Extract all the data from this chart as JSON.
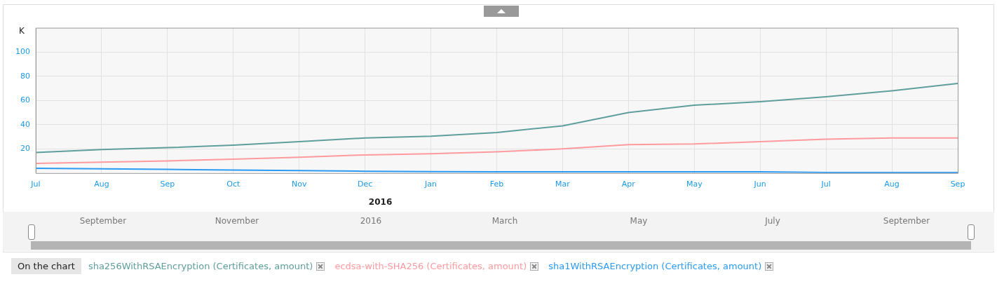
{
  "chart_data": {
    "type": "line",
    "ylabel": "K",
    "legend_title": "On the chart",
    "categories": [
      "Jul",
      "Aug",
      "Sep",
      "Oct",
      "Nov",
      "Dec",
      "Jan",
      "Feb",
      "Mar",
      "Apr",
      "May",
      "Jun",
      "Jul",
      "Aug",
      "Sep"
    ],
    "series": [
      {
        "name": "sha256WithRSAEncryption (Certificates, amount)",
        "color": "#5f9e9c",
        "values": [
          17,
          19.5,
          21,
          23,
          26,
          29,
          30.5,
          33.5,
          39,
          50,
          56,
          59,
          63,
          68,
          74
        ]
      },
      {
        "name": "ecdsa-with-SHA256 (Certificates, amount)",
        "color": "#ff9a9e",
        "values": [
          8,
          9,
          10,
          11.5,
          13,
          15,
          16,
          17.5,
          20,
          23.5,
          24,
          26,
          28,
          29,
          29
        ]
      },
      {
        "name": "sha1WithRSAEncryption (Certificates, amount)",
        "color": "#2b9af3",
        "values": [
          4,
          3.5,
          3,
          2.5,
          2,
          1.5,
          1.2,
          1,
          1,
          1,
          1,
          1,
          0.5,
          0.5,
          0.5
        ]
      }
    ],
    "ylim": [
      0,
      120
    ],
    "yticks": [
      20,
      40,
      60,
      80,
      100
    ],
    "grid": true,
    "legend": "bottom",
    "annotations": [
      "2016",
      "September",
      "November",
      "2016",
      "March",
      "May",
      "July",
      "September"
    ]
  }
}
